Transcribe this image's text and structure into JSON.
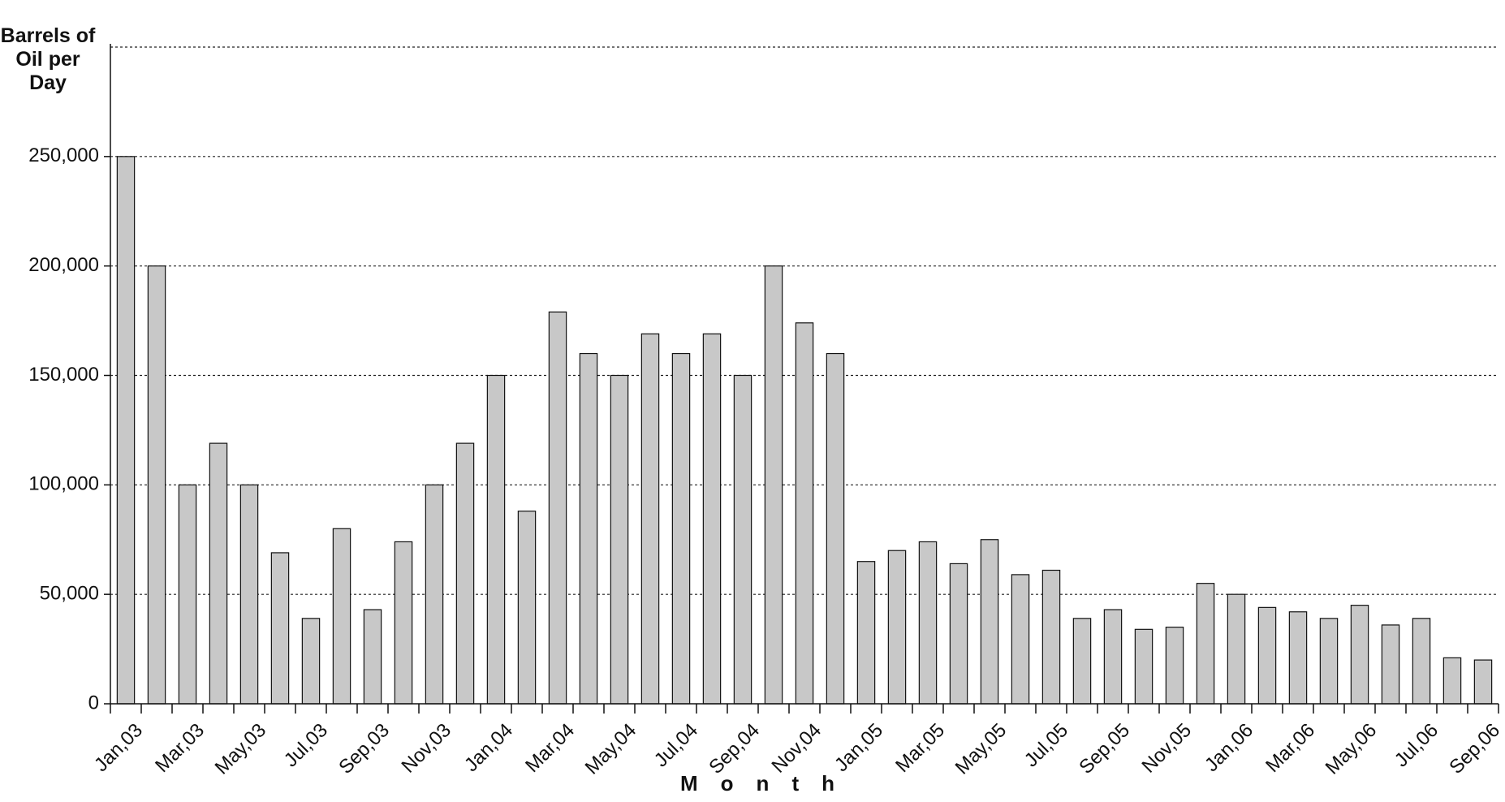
{
  "chart_data": {
    "type": "bar",
    "y_label": "Barrels of Oil per Day",
    "x_label": "Month",
    "categories": [
      "Jan,03",
      null,
      "Mar,03",
      null,
      "May,03",
      null,
      "Jul,03",
      null,
      "Sep,03",
      null,
      "Nov,03",
      null,
      "Jan,04",
      null,
      "Mar,04",
      null,
      "May,04",
      null,
      "Jul,04",
      null,
      "Sep,04",
      null,
      "Nov,04",
      null,
      "Jan,05",
      null,
      "Mar,05",
      null,
      "May,05",
      null,
      "Jul,05",
      null,
      "Sep,05",
      null,
      "Nov,05",
      null,
      "Jan,06",
      null,
      "Mar,06",
      null,
      "May,06",
      null,
      "Jul,06",
      null,
      "Sep,06"
    ],
    "values": [
      250000,
      200000,
      100000,
      119000,
      100000,
      69000,
      39000,
      80000,
      43000,
      74000,
      100000,
      119000,
      150000,
      88000,
      179000,
      160000,
      150000,
      169000,
      160000,
      169000,
      150000,
      200000,
      174000,
      160000,
      65000,
      70000,
      74000,
      64000,
      75000,
      59000,
      61000,
      39000,
      43000,
      34000,
      35000,
      55000,
      50000,
      44000,
      42000,
      39000,
      45000,
      36000,
      39000,
      21000,
      20000
    ],
    "color": "#c8c8c8",
    "ylim": [
      0,
      300000
    ],
    "yticks": [
      0,
      {
        "value": 50000,
        "label": "50,000"
      },
      {
        "value": 100000,
        "label": "100,000"
      },
      {
        "value": 150000,
        "label": "150,000"
      },
      {
        "value": 200000,
        "label": "200,000"
      },
      {
        "value": 250000,
        "label": "250,000"
      }
    ],
    "grid": true
  }
}
